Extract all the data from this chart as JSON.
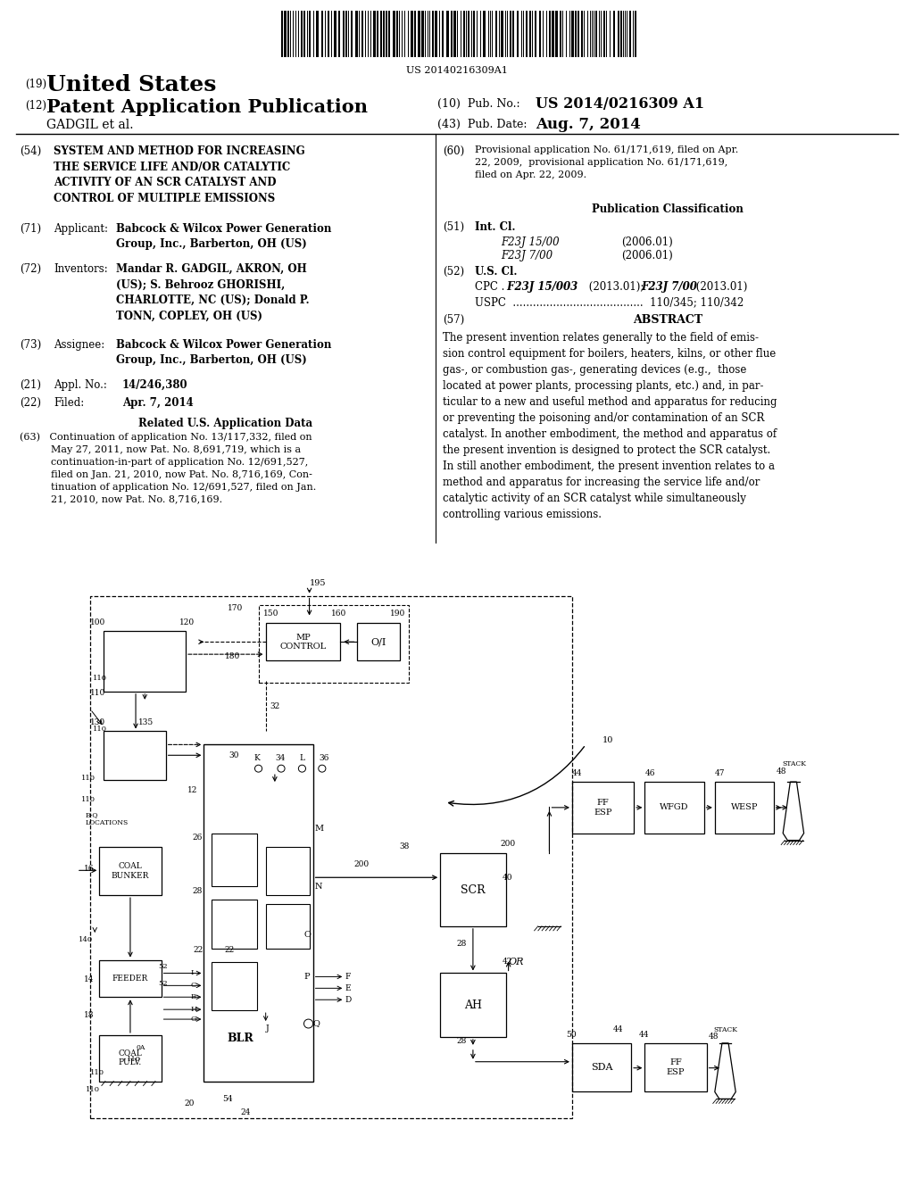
{
  "background_color": "#ffffff",
  "barcode_text": "US 20140216309A1",
  "patent_number": "US 2014/0216309 A1",
  "pub_date": "Aug. 7, 2014",
  "country": "United States",
  "pub_type": "Patent Application Publication",
  "inventor_name": "GADGIL et al.",
  "num19": "(19)",
  "num12": "(12)"
}
